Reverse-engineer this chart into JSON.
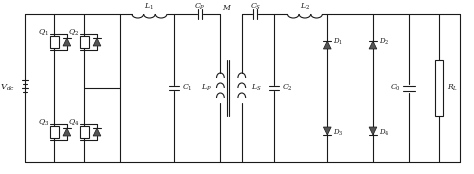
{
  "bg_color": "#ffffff",
  "line_color": "#1a1a1a",
  "lw": 0.8,
  "fw": 4.74,
  "fh": 1.74,
  "dpi": 100,
  "fs": 5.5,
  "labels": {
    "Vdc": "$V_{dc}$",
    "Q1": "$Q_1$",
    "Q2": "$Q_2$",
    "Q3": "$Q_3$",
    "Q4": "$Q_4$",
    "L1": "$L_1$",
    "C1": "$C_1$",
    "Cp": "$C_P$",
    "Lp": "$L_P$",
    "M": "$M$",
    "Ls": "$L_S$",
    "Cs": "$C_S$",
    "L2": "$L_2$",
    "C2": "$C_2$",
    "D1": "$D_1$",
    "D2": "$D_2$",
    "D3": "$D_3$",
    "D4": "$D_4$",
    "C0": "$C_0$",
    "RL": "$R_L$"
  }
}
